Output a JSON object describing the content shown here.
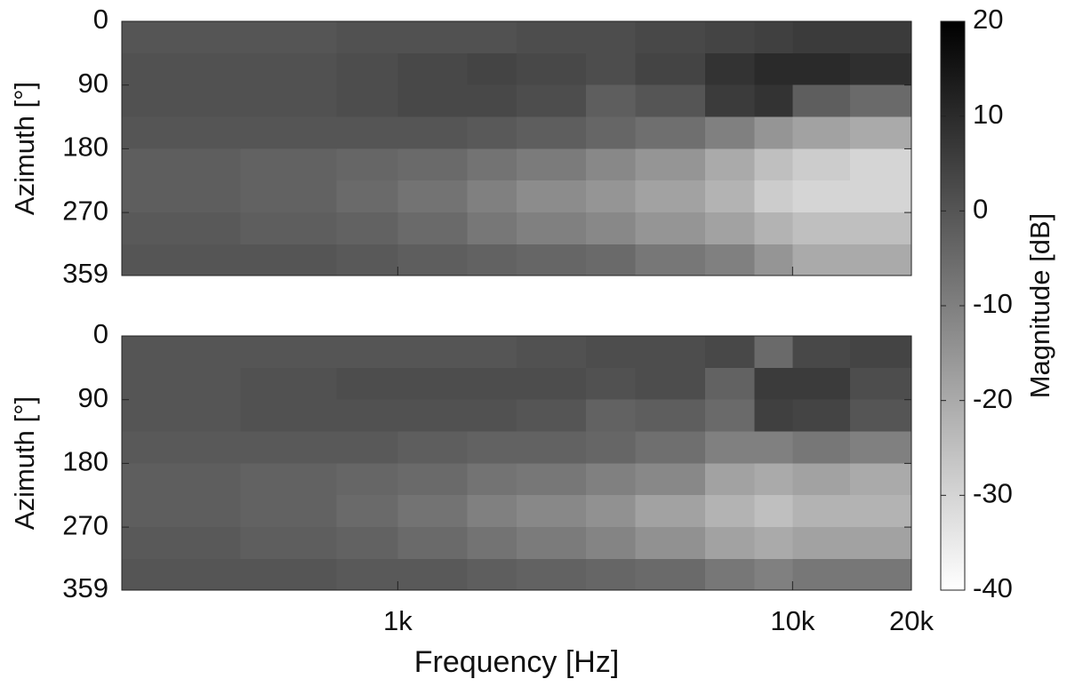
{
  "chart_data": [
    {
      "type": "heatmap",
      "ylabel": "Azimuth [°]",
      "xscale": "log",
      "xlim": [
        200,
        20000
      ],
      "xticks": [
        {
          "value": 1000,
          "label": "1k"
        },
        {
          "value": 10000,
          "label": "10k"
        },
        {
          "value": 20000,
          "label": "20k"
        }
      ],
      "ylim": [
        0,
        359
      ],
      "y_direction": "reverse",
      "yticks": [
        0,
        90,
        180,
        270,
        359
      ],
      "x_edges": [
        200,
        400,
        700,
        1000,
        1500,
        2000,
        3000,
        4000,
        6000,
        8000,
        10000,
        14000,
        20000
      ],
      "y_edges": [
        0,
        45,
        90,
        135,
        180,
        225,
        270,
        315,
        359
      ],
      "values": [
        [
          0,
          0,
          1,
          1,
          1,
          2,
          2,
          3,
          4,
          5,
          6,
          6
        ],
        [
          1,
          1,
          2,
          3,
          4,
          3,
          2,
          4,
          8,
          10,
          10,
          9
        ],
        [
          1,
          1,
          2,
          3,
          3,
          2,
          -2,
          0,
          6,
          8,
          -2,
          -5
        ],
        [
          0,
          0,
          0,
          0,
          -1,
          -2,
          -4,
          -6,
          -10,
          -15,
          -18,
          -20
        ],
        [
          -2,
          -3,
          -4,
          -5,
          -7,
          -9,
          -12,
          -15,
          -20,
          -25,
          -28,
          -30
        ],
        [
          -2,
          -3,
          -5,
          -7,
          -10,
          -13,
          -15,
          -18,
          -22,
          -28,
          -30,
          -30
        ],
        [
          -1,
          -2,
          -3,
          -5,
          -8,
          -10,
          -12,
          -15,
          -18,
          -22,
          -25,
          -25
        ],
        [
          0,
          0,
          -1,
          -2,
          -3,
          -4,
          -5,
          -8,
          -10,
          -15,
          -20,
          -20
        ]
      ],
      "colorbar": {
        "label": "Magnitude [dB]",
        "clim": [
          -40,
          20
        ],
        "ticks": [
          20,
          10,
          0,
          -10,
          -20,
          -30,
          -40
        ]
      }
    },
    {
      "type": "heatmap",
      "ylabel": "Azimuth [°]",
      "xlabel": "Frequency [Hz]",
      "xscale": "log",
      "xlim": [
        200,
        20000
      ],
      "xticks": [
        {
          "value": 1000,
          "label": "1k"
        },
        {
          "value": 10000,
          "label": "10k"
        },
        {
          "value": 20000,
          "label": "20k"
        }
      ],
      "ylim": [
        0,
        359
      ],
      "y_direction": "reverse",
      "yticks": [
        0,
        90,
        180,
        270,
        359
      ],
      "x_edges": [
        200,
        400,
        700,
        1000,
        1500,
        2000,
        3000,
        4000,
        6000,
        8000,
        10000,
        14000,
        20000
      ],
      "y_edges": [
        0,
        45,
        90,
        135,
        180,
        225,
        270,
        315,
        359
      ],
      "values": [
        [
          0,
          0,
          0,
          0,
          0,
          1,
          2,
          2,
          3,
          -5,
          3,
          4
        ],
        [
          0,
          1,
          2,
          2,
          2,
          2,
          1,
          2,
          -3,
          6,
          6,
          2
        ],
        [
          0,
          1,
          1,
          1,
          1,
          0,
          -3,
          -2,
          -5,
          5,
          4,
          0
        ],
        [
          -1,
          -1,
          -1,
          -2,
          -3,
          -3,
          -4,
          -6,
          -10,
          -10,
          -8,
          -10
        ],
        [
          -2,
          -3,
          -4,
          -5,
          -7,
          -8,
          -10,
          -12,
          -18,
          -20,
          -18,
          -20
        ],
        [
          -2,
          -3,
          -5,
          -7,
          -10,
          -12,
          -14,
          -18,
          -22,
          -25,
          -22,
          -22
        ],
        [
          -1,
          -2,
          -3,
          -5,
          -7,
          -9,
          -11,
          -14,
          -18,
          -20,
          -18,
          -18
        ],
        [
          0,
          0,
          -1,
          -1,
          -2,
          -3,
          -4,
          -5,
          -8,
          -10,
          -8,
          -8
        ]
      ]
    }
  ]
}
